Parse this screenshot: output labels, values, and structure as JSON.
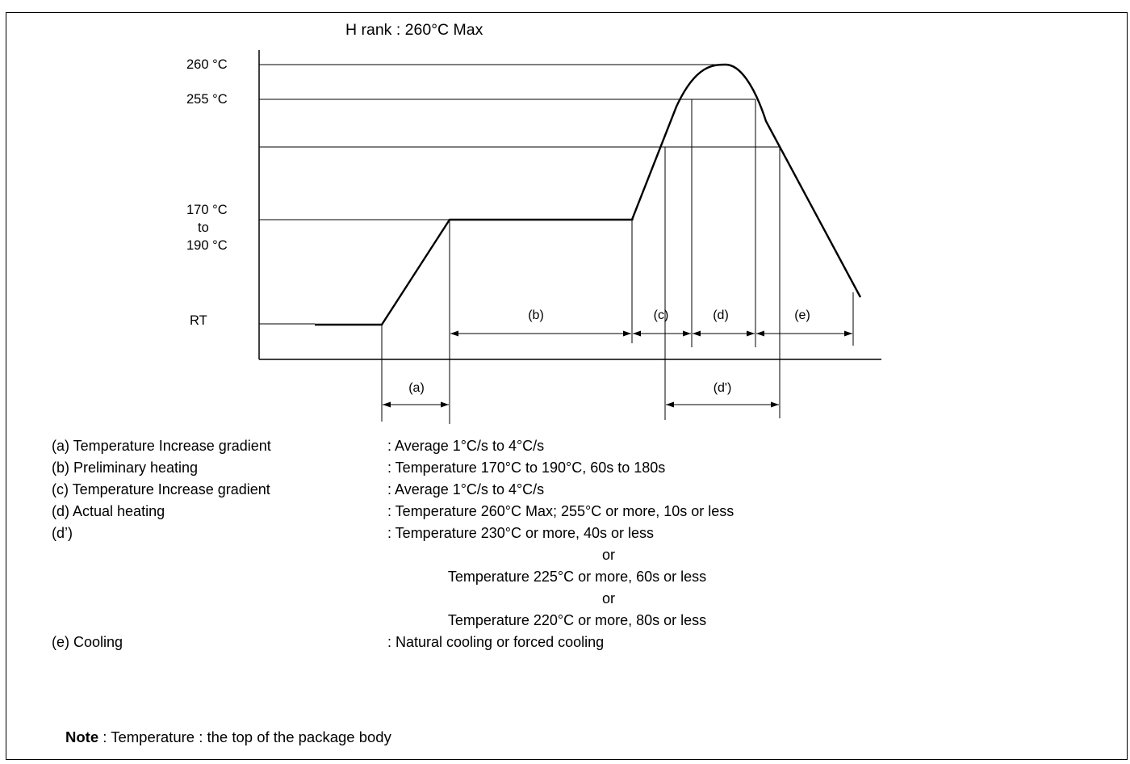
{
  "diagram": {
    "title": "H rank : 260°C Max",
    "y_labels": {
      "t260": "260 °C",
      "t255": "255 °C",
      "preheat": [
        "170 °C",
        "to",
        "190 °C"
      ],
      "rt": "RT"
    },
    "intervals": {
      "a": "(a)",
      "b": "(b)",
      "c": "(c)",
      "d": "(d)",
      "e": "(e)",
      "d_prime": "(d')"
    }
  },
  "legend": [
    {
      "key": "(a) Temperature Increase gradient",
      "value": ": Average 1°C/s to 4°C/s"
    },
    {
      "key": "(b) Preliminary heating",
      "value": ": Temperature 170°C to 190°C, 60s to 180s"
    },
    {
      "key": "(c) Temperature Increase gradient",
      "value": ": Average 1°C/s to 4°C/s"
    },
    {
      "key": "(d) Actual heating",
      "value": ": Temperature 260°C Max;  255°C or more, 10s or less"
    },
    {
      "key": "(d’)",
      "value": ": Temperature 230°C or more, 40s or less"
    },
    {
      "key": "(e) Cooling",
      "value": ": Natural cooling or forced cooling"
    }
  ],
  "d_prime_alternatives": {
    "or_1": "or",
    "line_2": "Temperature 225°C or more, 60s or less",
    "or_2": "or",
    "line_3": "Temperature 220°C or more, 80s or less"
  },
  "note": {
    "label": "Note",
    "text": " : Temperature : the top of the package body"
  },
  "colors": {
    "line": "#000000",
    "background": "#ffffff"
  }
}
